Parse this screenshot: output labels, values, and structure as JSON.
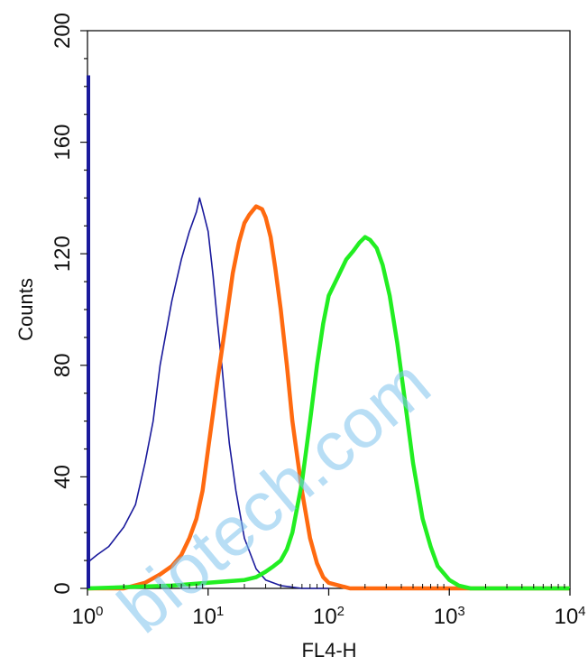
{
  "chart_data": {
    "type": "line",
    "title": "",
    "xlabel": "FL4-H",
    "ylabel": "Counts",
    "xscale": "log",
    "xlim": [
      1,
      10000
    ],
    "ylim": [
      0,
      200
    ],
    "x_ticks": [
      {
        "value": 1,
        "base": "10",
        "exp": "0"
      },
      {
        "value": 10,
        "base": "10",
        "exp": "1"
      },
      {
        "value": 100,
        "base": "10",
        "exp": "2"
      },
      {
        "value": 1000,
        "base": "10",
        "exp": "3"
      },
      {
        "value": 10000,
        "base": "10",
        "exp": "4"
      }
    ],
    "y_ticks": [
      "0",
      "40",
      "80",
      "120",
      "160",
      "200"
    ],
    "grid": false,
    "series": [
      {
        "color": "#1a1a9c",
        "x": [
          1.0,
          1.05,
          1.2,
          1.5,
          2.0,
          2.5,
          3.0,
          3.5,
          4.0,
          5.0,
          6.0,
          7.0,
          8.0,
          8.5,
          9.0,
          10.0,
          11.0,
          12.0,
          13.0,
          14.0,
          15.0,
          17.0,
          20.0,
          25.0,
          30.0,
          40.0,
          60.0,
          100.0
        ],
        "y": [
          8,
          10,
          12,
          15,
          22,
          30,
          45,
          60,
          80,
          103,
          118,
          128,
          135,
          140,
          136,
          128,
          112,
          95,
          80,
          65,
          52,
          35,
          18,
          7,
          3,
          1,
          0,
          0
        ]
      },
      {
        "color": "#ff6a10",
        "x": [
          1.0,
          2.0,
          3.0,
          4.0,
          5.0,
          6.0,
          7.0,
          8.0,
          9.0,
          10.0,
          11.0,
          12.0,
          14.0,
          16.0,
          18.0,
          20.0,
          22.0,
          25.0,
          28.0,
          30.0,
          33.0,
          36.0,
          40.0,
          45.0,
          50.0,
          60.0,
          70.0,
          80.0,
          90.0,
          100.0,
          150.0,
          10000.0
        ],
        "y": [
          0,
          0,
          2,
          5,
          8,
          12,
          18,
          25,
          35,
          50,
          63,
          75,
          95,
          113,
          124,
          131,
          134,
          137,
          136,
          133,
          126,
          115,
          100,
          80,
          60,
          35,
          18,
          9,
          4,
          2,
          0,
          0
        ]
      },
      {
        "color": "#22ee22",
        "x": [
          1.0,
          5.0,
          10.0,
          20.0,
          25.0,
          30.0,
          35.0,
          40.0,
          45.0,
          50.0,
          60.0,
          70.0,
          80.0,
          90.0,
          100.0,
          120.0,
          140.0,
          160.0,
          180.0,
          200.0,
          220.0,
          250.0,
          280.0,
          320.0,
          370.0,
          420.0,
          500.0,
          600.0,
          700.0,
          800.0,
          1000.0,
          1200.0,
          1500.0,
          10000.0
        ],
        "y": [
          0,
          1,
          2,
          3,
          4,
          6,
          8,
          10,
          14,
          20,
          38,
          60,
          80,
          95,
          105,
          112,
          118,
          121,
          124,
          126,
          125,
          122,
          116,
          105,
          88,
          70,
          45,
          25,
          15,
          8,
          3,
          1,
          0,
          0
        ]
      }
    ]
  },
  "watermark": {
    "text": "biotech.com"
  }
}
